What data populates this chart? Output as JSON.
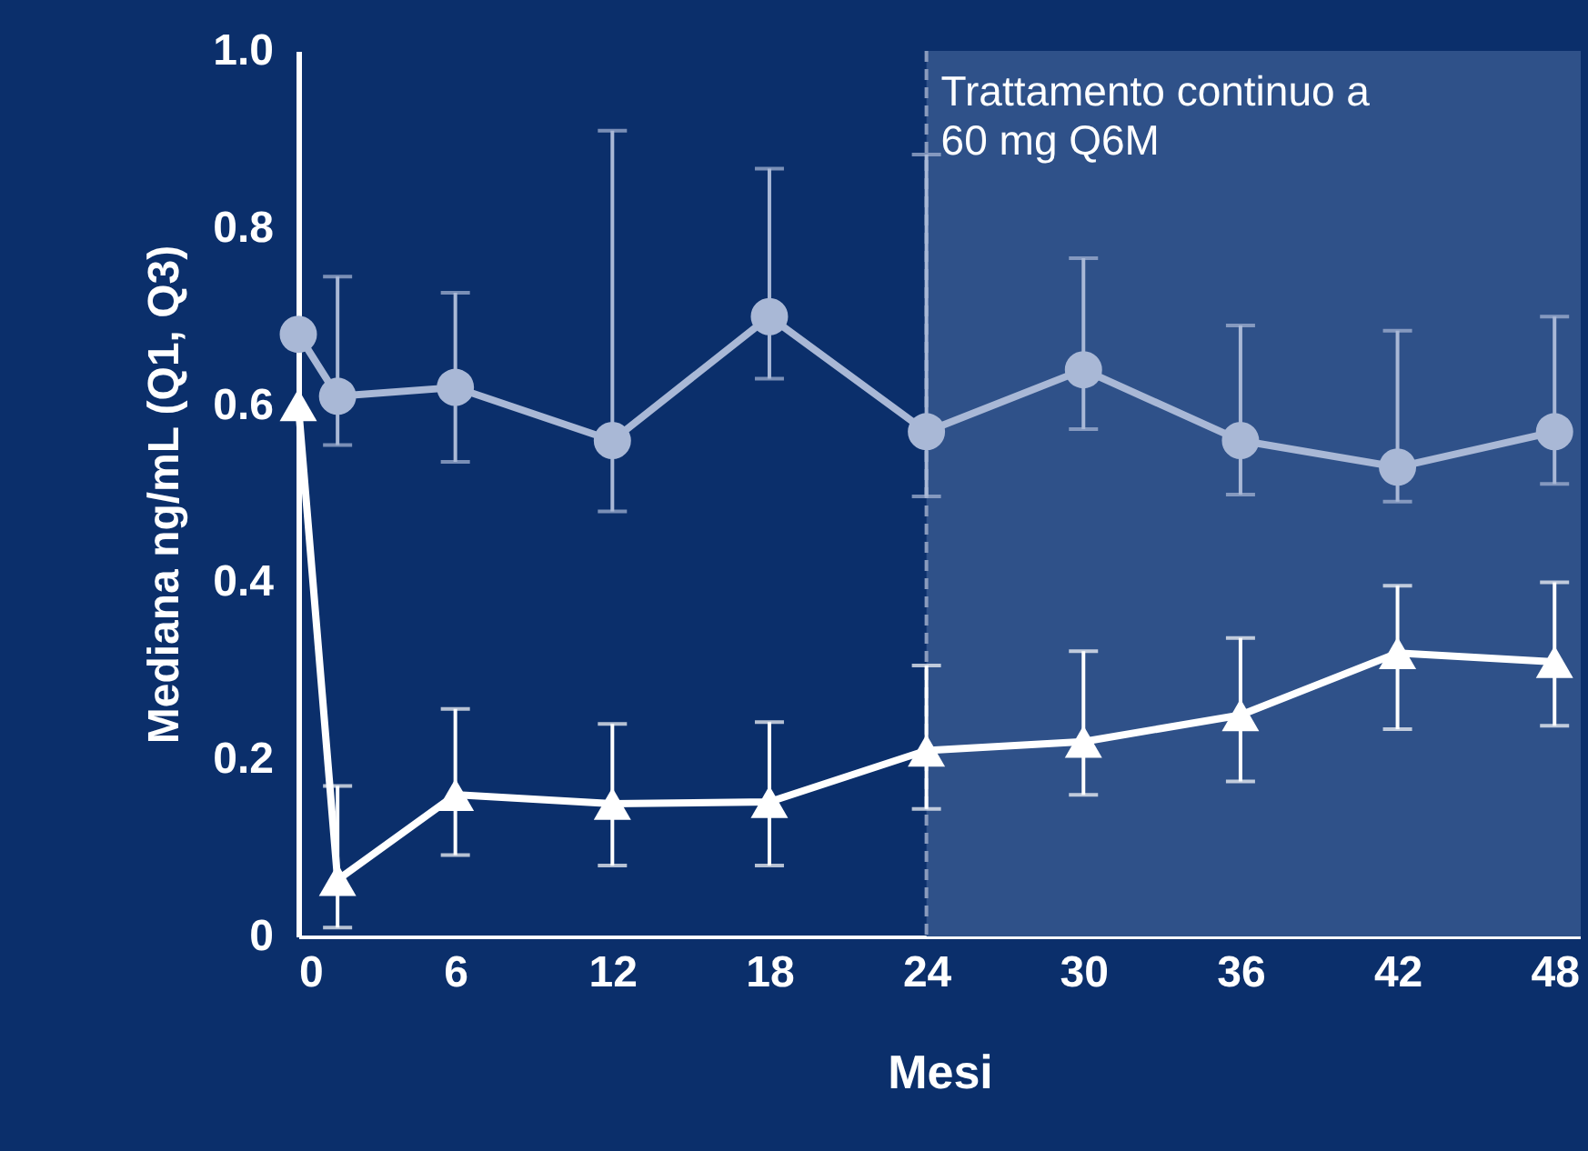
{
  "chart_data": {
    "type": "line",
    "xlabel": "Mesi",
    "ylabel": "Mediana ng/mL (Q1, Q3)",
    "x": [
      0,
      1.5,
      6,
      12,
      18,
      24,
      30,
      36,
      42,
      48
    ],
    "series": [
      {
        "color": "#a9b8d6",
        "marker": "circle",
        "values": [
          0.68,
          0.61,
          0.62,
          0.56,
          0.7,
          0.57,
          0.64,
          0.56,
          0.53,
          0.57
        ],
        "errors": [
          null,
          [
            0.555,
            0.745
          ],
          [
            0.536,
            0.727
          ],
          [
            0.48,
            0.91
          ],
          [
            0.63,
            0.867
          ],
          [
            0.497,
            0.883
          ],
          [
            0.573,
            0.766
          ],
          [
            0.499,
            0.69
          ],
          [
            0.491,
            0.684
          ],
          [
            0.511,
            0.7
          ]
        ]
      },
      {
        "color": "#ffffff",
        "marker": "triangle",
        "values": [
          0.6,
          0.064,
          0.16,
          0.15,
          0.152,
          0.21,
          0.22,
          0.25,
          0.32,
          0.31
        ],
        "errors": [
          null,
          [
            0.01,
            0.17
          ],
          [
            0.092,
            0.257
          ],
          [
            0.08,
            0.24
          ],
          [
            0.08,
            0.242
          ],
          [
            0.144,
            0.306
          ],
          [
            0.16,
            0.322
          ],
          [
            0.175,
            0.337
          ],
          [
            0.234,
            0.396
          ],
          [
            0.238,
            0.4
          ]
        ]
      }
    ],
    "xlim": [
      0,
      49
    ],
    "xticks": [
      0,
      6,
      12,
      18,
      24,
      30,
      36,
      42,
      48
    ],
    "ylim": [
      0,
      1
    ],
    "yticks": [
      0,
      0.2,
      0.4,
      0.6,
      0.8,
      {
        "value": 1,
        "label": "1.0"
      }
    ],
    "grid": false,
    "ref_lines": [
      {
        "axis": "x",
        "value": 24,
        "color": "#8a9bbd",
        "line_style": "dashed"
      }
    ],
    "bands": [
      {
        "axis": "x",
        "from": 24,
        "to": 49,
        "label": "Trattamento continuo a 60 mg Q6M",
        "color": "#2f5189"
      }
    ]
  }
}
